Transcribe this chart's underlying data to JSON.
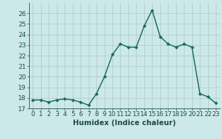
{
  "x": [
    0,
    1,
    2,
    3,
    4,
    5,
    6,
    7,
    8,
    9,
    10,
    11,
    12,
    13,
    14,
    15,
    16,
    17,
    18,
    19,
    20,
    21,
    22,
    23
  ],
  "y": [
    17.8,
    17.8,
    17.6,
    17.8,
    17.9,
    17.8,
    17.6,
    17.3,
    18.4,
    20.0,
    22.1,
    23.1,
    22.8,
    22.8,
    24.8,
    26.3,
    23.8,
    23.1,
    22.8,
    23.1,
    22.8,
    18.4,
    18.1,
    17.5
  ],
  "line_color": "#1a6b5a",
  "marker": "D",
  "marker_size": 2.2,
  "xlabel": "Humidex (Indice chaleur)",
  "xlim": [
    -0.5,
    23.5
  ],
  "ylim": [
    17,
    27
  ],
  "yticks": [
    17,
    18,
    19,
    20,
    21,
    22,
    23,
    24,
    25,
    26
  ],
  "xticks": [
    0,
    1,
    2,
    3,
    4,
    5,
    6,
    7,
    8,
    9,
    10,
    11,
    12,
    13,
    14,
    15,
    16,
    17,
    18,
    19,
    20,
    21,
    22,
    23
  ],
  "bg_color": "#cce8e8",
  "grid_color": "#b0cccc",
  "font_color": "#1a4a4a",
  "xlabel_fontsize": 7.5,
  "tick_fontsize": 6.5,
  "linewidth": 1.1
}
